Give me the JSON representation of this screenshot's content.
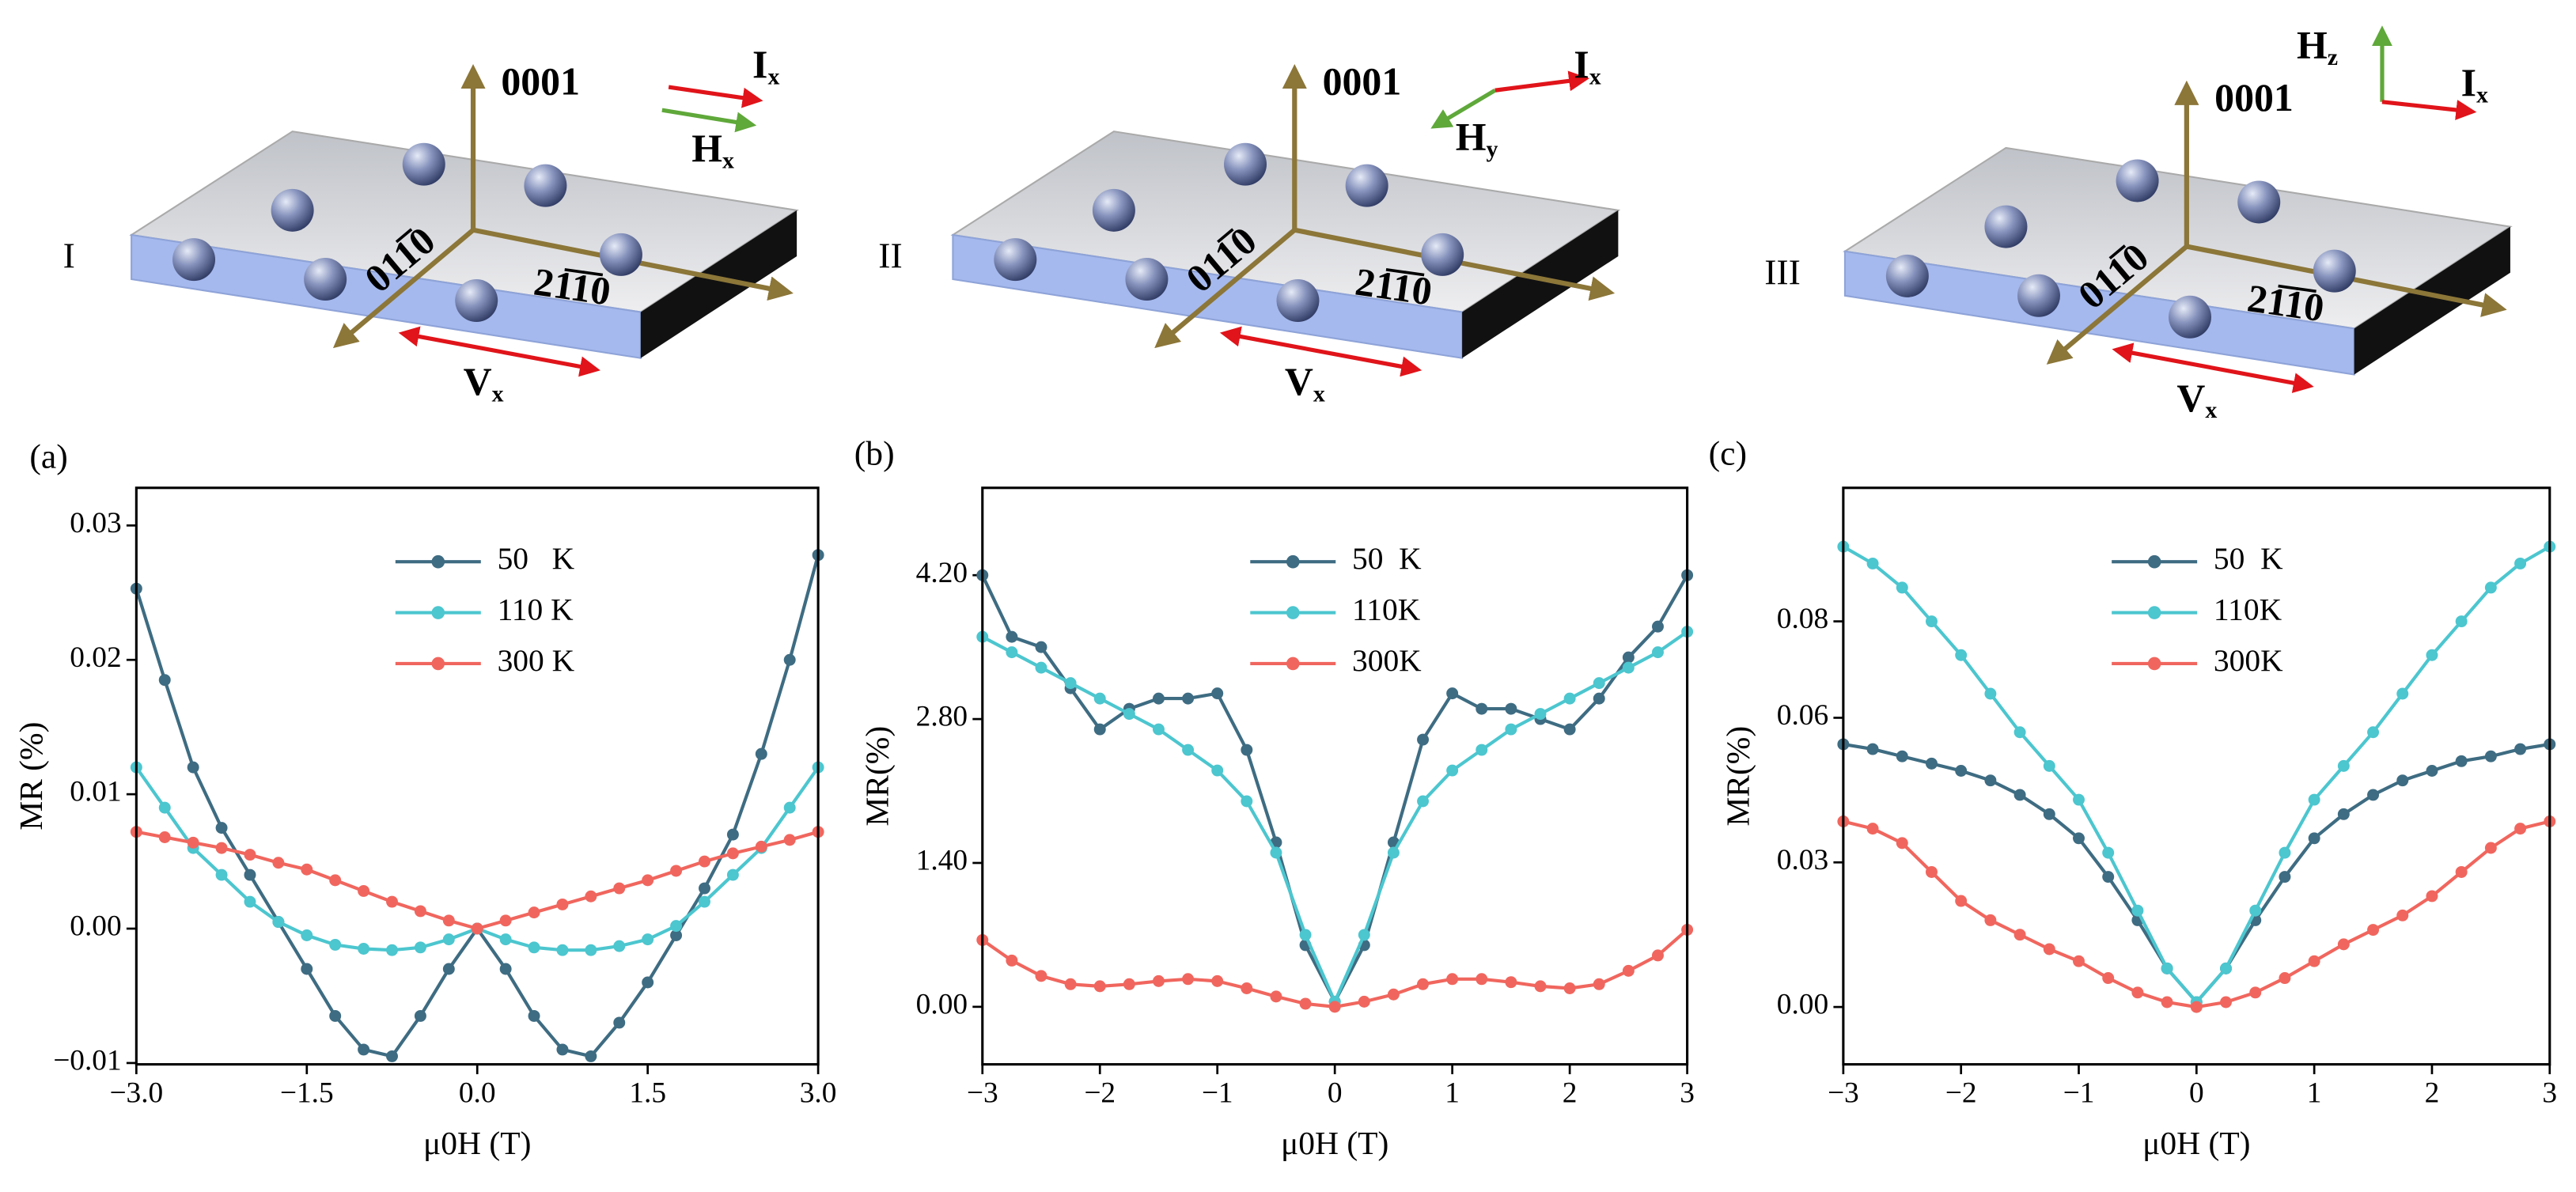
{
  "diagrams": [
    {
      "label": "I",
      "axis": "0001",
      "dir1": "011̅0",
      "dir2": "21̅1̅0",
      "current": {
        "text": "I",
        "sub": "x"
      },
      "field": {
        "text": "H",
        "sub": "x"
      },
      "voltage": {
        "text": "V",
        "sub": "x"
      }
    },
    {
      "label": "II",
      "axis": "0001",
      "dir1": "011̅0",
      "dir2": "21̅1̅0",
      "current": {
        "text": "I",
        "sub": "x"
      },
      "field": {
        "text": "H",
        "sub": "y"
      },
      "voltage": {
        "text": "V",
        "sub": "x"
      }
    },
    {
      "label": "III",
      "axis": "0001",
      "dir1": "011̅0",
      "dir2": "21̅1̅0",
      "current": {
        "text": "I",
        "sub": "x"
      },
      "field": {
        "text": "H",
        "sub": "z"
      },
      "voltage": {
        "text": "V",
        "sub": "x"
      }
    }
  ],
  "chart_data": [
    {
      "type": "line",
      "panel_label": "(a)",
      "xlabel": "μ0H (T)",
      "ylabel": "MR (%)",
      "legend": "upper center",
      "x": [
        -3,
        -2.75,
        -2.5,
        -2.25,
        -2,
        -1.75,
        -1.5,
        -1.25,
        -1,
        -0.75,
        -0.5,
        -0.25,
        0,
        0.25,
        0.5,
        0.75,
        1,
        1.25,
        1.5,
        1.75,
        2,
        2.25,
        2.5,
        2.75,
        3
      ],
      "xlim": [
        -3,
        3
      ],
      "xticks": [
        {
          "value": -3,
          "label": "−3.0"
        },
        {
          "value": -1.5,
          "label": "−1.5"
        },
        {
          "value": 0,
          "label": "0.0"
        },
        {
          "value": 1.5,
          "label": "1.5"
        },
        {
          "value": 3,
          "label": "3.0"
        }
      ],
      "ylim": [
        -0.0101,
        0.0328
      ],
      "yticks": [
        {
          "value": -0.01,
          "label": "−0.01"
        },
        {
          "value": 0,
          "label": "0.00"
        },
        0.01,
        0.02,
        0.03
      ],
      "series": [
        {
          "name": "50   K",
          "color": "#3e6c82",
          "values": [
            0.0253,
            0.0185,
            0.012,
            0.0075,
            0.004,
            0.0005,
            -0.003,
            -0.0065,
            -0.009,
            -0.0095,
            -0.0065,
            -0.003,
            0,
            -0.003,
            -0.0065,
            -0.009,
            -0.0095,
            -0.007,
            -0.004,
            -0.0005,
            0.003,
            0.007,
            0.013,
            0.02,
            0.0278
          ]
        },
        {
          "name": "110 K",
          "color": "#4cc6cf",
          "values": [
            0.012,
            0.009,
            0.006,
            0.004,
            0.002,
            0.0005,
            -0.0005,
            -0.0012,
            -0.0015,
            -0.0016,
            -0.0014,
            -0.0008,
            0,
            -0.0008,
            -0.0014,
            -0.0016,
            -0.0016,
            -0.0013,
            -0.0008,
            0.0002,
            0.002,
            0.004,
            0.006,
            0.009,
            0.012
          ]
        },
        {
          "name": "300 K",
          "color": "#f0665e",
          "values": [
            0.0072,
            0.0068,
            0.0064,
            0.006,
            0.0055,
            0.0049,
            0.0044,
            0.0036,
            0.0028,
            0.002,
            0.0013,
            0.0006,
            0,
            0.0006,
            0.0012,
            0.0018,
            0.0024,
            0.003,
            0.0036,
            0.0043,
            0.005,
            0.0056,
            0.0061,
            0.0066,
            0.0072
          ]
        }
      ]
    },
    {
      "type": "line",
      "panel_label": "(b)",
      "xlabel": "μ0H (T)",
      "ylabel": "MR(%)",
      "legend": "upper center",
      "x": [
        -3,
        -2.75,
        -2.5,
        -2.25,
        -2,
        -1.75,
        -1.5,
        -1.25,
        -1,
        -0.75,
        -0.5,
        -0.25,
        0,
        0.25,
        0.5,
        0.75,
        1,
        1.25,
        1.5,
        1.75,
        2,
        2.25,
        2.5,
        2.75,
        3
      ],
      "xlim": [
        -3,
        3
      ],
      "xticks": [
        {
          "value": -3,
          "label": "−3"
        },
        {
          "value": -2,
          "label": "−2"
        },
        {
          "value": -1,
          "label": "−1"
        },
        0,
        1,
        2,
        3
      ],
      "ylim": [
        -0.56,
        5.05
      ],
      "yticks": [
        {
          "value": 0,
          "label": "0.00"
        },
        {
          "value": 1.4,
          "label": "1.40"
        },
        {
          "value": 2.8,
          "label": "2.80"
        },
        {
          "value": 4.2,
          "label": "4.20"
        }
      ],
      "series": [
        {
          "name": "50  K",
          "color": "#3e6c82",
          "values": [
            4.2,
            3.6,
            3.5,
            3.1,
            2.7,
            2.9,
            3.0,
            3.0,
            3.05,
            2.5,
            1.6,
            0.6,
            0.05,
            0.6,
            1.6,
            2.6,
            3.05,
            2.9,
            2.9,
            2.8,
            2.7,
            3.0,
            3.4,
            3.7,
            4.2
          ]
        },
        {
          "name": "110K",
          "color": "#4cc6cf",
          "values": [
            3.6,
            3.45,
            3.3,
            3.15,
            3.0,
            2.85,
            2.7,
            2.5,
            2.3,
            2.0,
            1.5,
            0.7,
            0.05,
            0.7,
            1.5,
            2.0,
            2.3,
            2.5,
            2.7,
            2.85,
            3.0,
            3.15,
            3.3,
            3.45,
            3.65
          ]
        },
        {
          "name": "300K",
          "color": "#f0665e",
          "values": [
            0.65,
            0.45,
            0.3,
            0.22,
            0.2,
            0.22,
            0.25,
            0.27,
            0.25,
            0.18,
            0.1,
            0.03,
            0,
            0.05,
            0.12,
            0.22,
            0.27,
            0.27,
            0.24,
            0.2,
            0.18,
            0.22,
            0.35,
            0.5,
            0.75
          ]
        }
      ]
    },
    {
      "type": "line",
      "panel_label": "(c)",
      "xlabel": "μ0H (T)",
      "ylabel": "MR(%)",
      "legend": "upper center",
      "x": [
        -3,
        -2.75,
        -2.5,
        -2.25,
        -2,
        -1.75,
        -1.5,
        -1.25,
        -1,
        -0.75,
        -0.5,
        -0.25,
        0,
        0.25,
        0.5,
        0.75,
        1,
        1.25,
        1.5,
        1.75,
        2,
        2.25,
        2.5,
        2.75,
        3
      ],
      "xlim": [
        -3,
        3
      ],
      "xticks": [
        {
          "value": -3,
          "label": "−3"
        },
        {
          "value": -2,
          "label": "−2"
        },
        {
          "value": -1,
          "label": "−1"
        },
        0,
        1,
        2,
        3
      ],
      "ylim": [
        -0.0119,
        0.1077
      ],
      "yticks": [
        {
          "value": 0,
          "label": "0.00"
        },
        0.03,
        0.06,
        0.08
      ],
      "series": [
        {
          "name": "50  K",
          "color": "#3e6c82",
          "values": [
            0.0545,
            0.0535,
            0.052,
            0.0505,
            0.049,
            0.047,
            0.044,
            0.04,
            0.035,
            0.027,
            0.018,
            0.008,
            0.001,
            0.008,
            0.018,
            0.027,
            0.035,
            0.04,
            0.044,
            0.047,
            0.049,
            0.051,
            0.052,
            0.0535,
            0.0545
          ]
        },
        {
          "name": "110K",
          "color": "#4cc6cf",
          "values": [
            0.0955,
            0.092,
            0.087,
            0.08,
            0.073,
            0.065,
            0.057,
            0.05,
            0.043,
            0.032,
            0.02,
            0.008,
            0.001,
            0.008,
            0.02,
            0.032,
            0.043,
            0.05,
            0.057,
            0.065,
            0.073,
            0.08,
            0.087,
            0.092,
            0.0955
          ]
        },
        {
          "name": "300K",
          "color": "#f0665e",
          "values": [
            0.0385,
            0.037,
            0.034,
            0.028,
            0.022,
            0.018,
            0.015,
            0.012,
            0.0095,
            0.006,
            0.003,
            0.001,
            0,
            0.001,
            0.003,
            0.006,
            0.0095,
            0.013,
            0.016,
            0.019,
            0.023,
            0.028,
            0.033,
            0.037,
            0.0385
          ]
        }
      ]
    }
  ]
}
